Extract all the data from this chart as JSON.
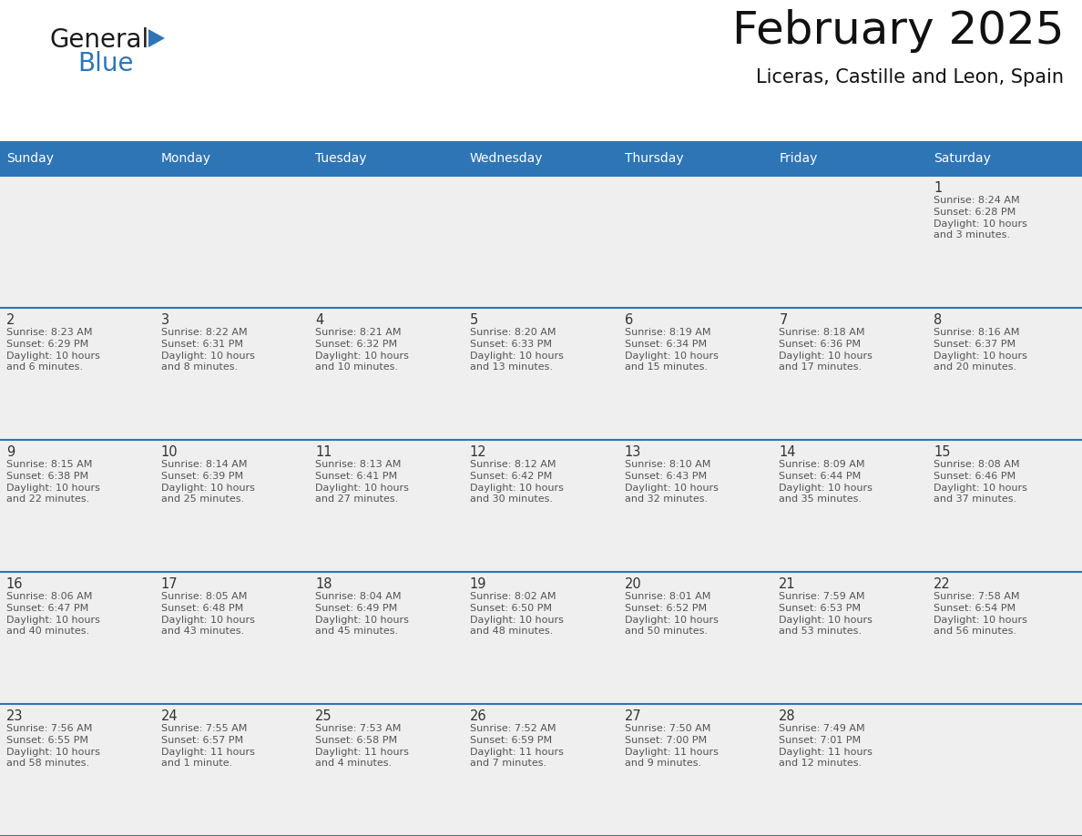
{
  "title": "February 2025",
  "subtitle": "Liceras, Castille and Leon, Spain",
  "header_bg_color": "#2E75B6",
  "header_text_color": "#FFFFFF",
  "row_separator_color": "#2E75B6",
  "cell_bg_color": "#EFEFEF",
  "cell_bg_white": "#FFFFFF",
  "day_number_color": "#333333",
  "cell_text_color": "#555555",
  "days_of_week": [
    "Sunday",
    "Monday",
    "Tuesday",
    "Wednesday",
    "Thursday",
    "Friday",
    "Saturday"
  ],
  "logo_text1": "General",
  "logo_text2": "Blue",
  "logo_color1": "#1A1A1A",
  "logo_color2": "#2E75B6",
  "calendar_data": [
    [
      {
        "day": "",
        "info": ""
      },
      {
        "day": "",
        "info": ""
      },
      {
        "day": "",
        "info": ""
      },
      {
        "day": "",
        "info": ""
      },
      {
        "day": "",
        "info": ""
      },
      {
        "day": "",
        "info": ""
      },
      {
        "day": "1",
        "info": "Sunrise: 8:24 AM\nSunset: 6:28 PM\nDaylight: 10 hours\nand 3 minutes."
      }
    ],
    [
      {
        "day": "2",
        "info": "Sunrise: 8:23 AM\nSunset: 6:29 PM\nDaylight: 10 hours\nand 6 minutes."
      },
      {
        "day": "3",
        "info": "Sunrise: 8:22 AM\nSunset: 6:31 PM\nDaylight: 10 hours\nand 8 minutes."
      },
      {
        "day": "4",
        "info": "Sunrise: 8:21 AM\nSunset: 6:32 PM\nDaylight: 10 hours\nand 10 minutes."
      },
      {
        "day": "5",
        "info": "Sunrise: 8:20 AM\nSunset: 6:33 PM\nDaylight: 10 hours\nand 13 minutes."
      },
      {
        "day": "6",
        "info": "Sunrise: 8:19 AM\nSunset: 6:34 PM\nDaylight: 10 hours\nand 15 minutes."
      },
      {
        "day": "7",
        "info": "Sunrise: 8:18 AM\nSunset: 6:36 PM\nDaylight: 10 hours\nand 17 minutes."
      },
      {
        "day": "8",
        "info": "Sunrise: 8:16 AM\nSunset: 6:37 PM\nDaylight: 10 hours\nand 20 minutes."
      }
    ],
    [
      {
        "day": "9",
        "info": "Sunrise: 8:15 AM\nSunset: 6:38 PM\nDaylight: 10 hours\nand 22 minutes."
      },
      {
        "day": "10",
        "info": "Sunrise: 8:14 AM\nSunset: 6:39 PM\nDaylight: 10 hours\nand 25 minutes."
      },
      {
        "day": "11",
        "info": "Sunrise: 8:13 AM\nSunset: 6:41 PM\nDaylight: 10 hours\nand 27 minutes."
      },
      {
        "day": "12",
        "info": "Sunrise: 8:12 AM\nSunset: 6:42 PM\nDaylight: 10 hours\nand 30 minutes."
      },
      {
        "day": "13",
        "info": "Sunrise: 8:10 AM\nSunset: 6:43 PM\nDaylight: 10 hours\nand 32 minutes."
      },
      {
        "day": "14",
        "info": "Sunrise: 8:09 AM\nSunset: 6:44 PM\nDaylight: 10 hours\nand 35 minutes."
      },
      {
        "day": "15",
        "info": "Sunrise: 8:08 AM\nSunset: 6:46 PM\nDaylight: 10 hours\nand 37 minutes."
      }
    ],
    [
      {
        "day": "16",
        "info": "Sunrise: 8:06 AM\nSunset: 6:47 PM\nDaylight: 10 hours\nand 40 minutes."
      },
      {
        "day": "17",
        "info": "Sunrise: 8:05 AM\nSunset: 6:48 PM\nDaylight: 10 hours\nand 43 minutes."
      },
      {
        "day": "18",
        "info": "Sunrise: 8:04 AM\nSunset: 6:49 PM\nDaylight: 10 hours\nand 45 minutes."
      },
      {
        "day": "19",
        "info": "Sunrise: 8:02 AM\nSunset: 6:50 PM\nDaylight: 10 hours\nand 48 minutes."
      },
      {
        "day": "20",
        "info": "Sunrise: 8:01 AM\nSunset: 6:52 PM\nDaylight: 10 hours\nand 50 minutes."
      },
      {
        "day": "21",
        "info": "Sunrise: 7:59 AM\nSunset: 6:53 PM\nDaylight: 10 hours\nand 53 minutes."
      },
      {
        "day": "22",
        "info": "Sunrise: 7:58 AM\nSunset: 6:54 PM\nDaylight: 10 hours\nand 56 minutes."
      }
    ],
    [
      {
        "day": "23",
        "info": "Sunrise: 7:56 AM\nSunset: 6:55 PM\nDaylight: 10 hours\nand 58 minutes."
      },
      {
        "day": "24",
        "info": "Sunrise: 7:55 AM\nSunset: 6:57 PM\nDaylight: 11 hours\nand 1 minute."
      },
      {
        "day": "25",
        "info": "Sunrise: 7:53 AM\nSunset: 6:58 PM\nDaylight: 11 hours\nand 4 minutes."
      },
      {
        "day": "26",
        "info": "Sunrise: 7:52 AM\nSunset: 6:59 PM\nDaylight: 11 hours\nand 7 minutes."
      },
      {
        "day": "27",
        "info": "Sunrise: 7:50 AM\nSunset: 7:00 PM\nDaylight: 11 hours\nand 9 minutes."
      },
      {
        "day": "28",
        "info": "Sunrise: 7:49 AM\nSunset: 7:01 PM\nDaylight: 11 hours\nand 12 minutes."
      },
      {
        "day": "",
        "info": ""
      }
    ]
  ],
  "fig_width": 11.88,
  "fig_height": 9.18,
  "dpi": 100
}
